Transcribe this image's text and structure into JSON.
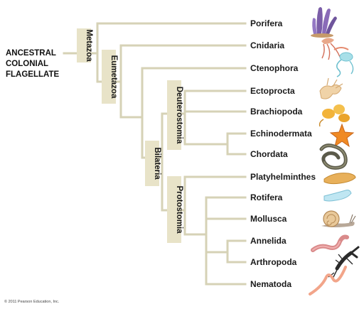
{
  "root": {
    "lines": [
      "ANCESTRAL",
      "COLONIAL",
      "FLAGELLATE"
    ]
  },
  "clades": {
    "metazoa": "Metazoa",
    "eumetazoa": "Eumetazoa",
    "bilateria": "Bilateria",
    "deuterostomia": "Deuterostomia",
    "protostomia": "Protostomia"
  },
  "taxa": [
    {
      "name": "Porifera",
      "icon": "sponge-icon"
    },
    {
      "name": "Cnidaria",
      "icon": "jellyfish-icon"
    },
    {
      "name": "Ctenophora",
      "icon": "comb-jelly-icon"
    },
    {
      "name": "Ectoprocta",
      "icon": "bryozoan-icon"
    },
    {
      "name": "Brachiopoda",
      "icon": "lamp-shell-icon"
    },
    {
      "name": "Echinodermata",
      "icon": "sea-star-icon"
    },
    {
      "name": "Chordata",
      "icon": "snake-icon"
    },
    {
      "name": "Platyhelminthes",
      "icon": "flatworm-icon"
    },
    {
      "name": "Rotifera",
      "icon": "rotifer-icon"
    },
    {
      "name": "Mollusca",
      "icon": "snail-icon"
    },
    {
      "name": "Annelida",
      "icon": "earthworm-icon"
    },
    {
      "name": "Arthropoda",
      "icon": "lobster-icon"
    },
    {
      "name": "Nematoda",
      "icon": "roundworm-icon"
    }
  ],
  "colors": {
    "branch": "#d6d2b6",
    "clade_box": "#e8e3c8"
  },
  "copyright": "© 2011 Pearson Education, Inc."
}
